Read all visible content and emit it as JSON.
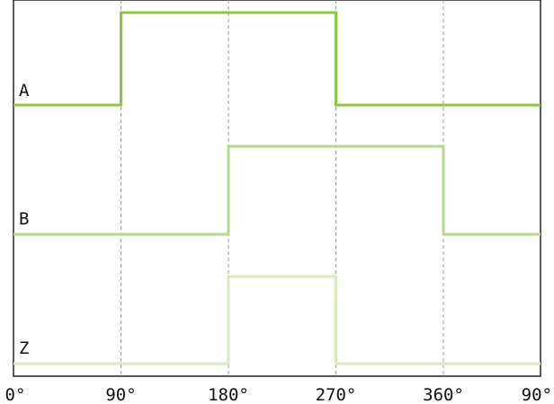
{
  "chart_data": {
    "type": "line",
    "title": "",
    "xlabel": "",
    "ylabel": "",
    "x_ticks": [
      "0°",
      "90°",
      "180°",
      "270°",
      "360°",
      "90°"
    ],
    "grid": "vertical dashed lines at 90°, 180°, 270° and 360°",
    "series": [
      {
        "name": "A",
        "color": "#8dc63f",
        "low_to_high_deg": 90,
        "high_to_low_deg": 270
      },
      {
        "name": "B",
        "color": "#b5d98a",
        "low_to_high_deg": 180,
        "high_to_low_deg": 360
      },
      {
        "name": "Z",
        "color": "#d8eac0",
        "low_to_high_deg": 180,
        "high_to_low_deg": 270
      }
    ]
  }
}
